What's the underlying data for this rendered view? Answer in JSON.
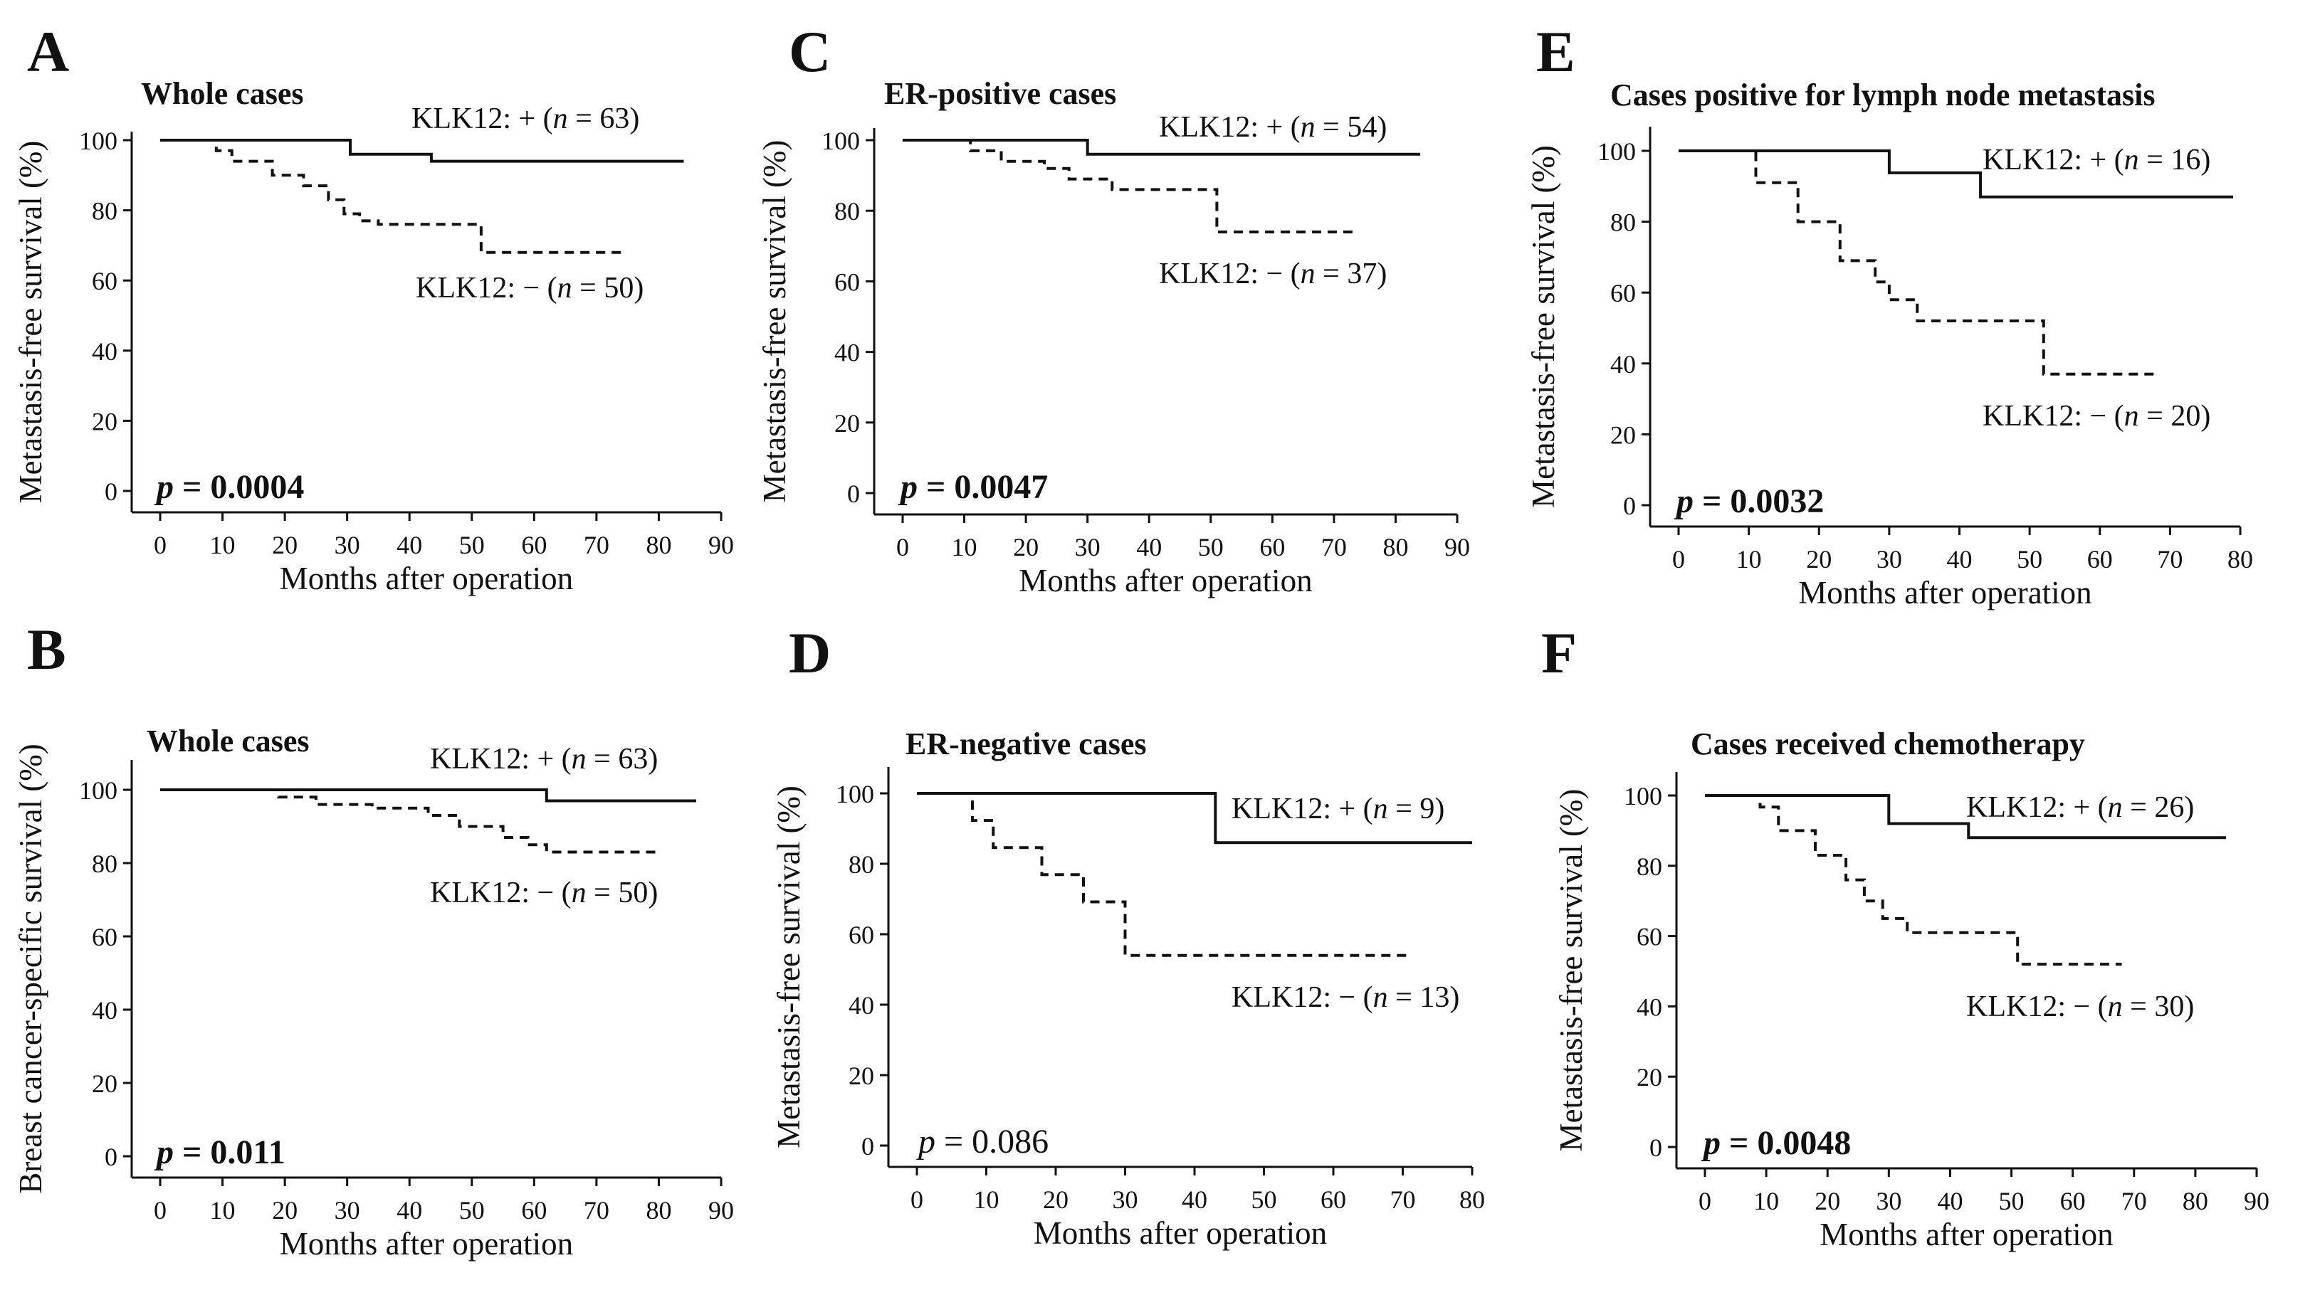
{
  "figure": {
    "panels": [
      "A",
      "B",
      "C",
      "D",
      "E",
      "F"
    ]
  },
  "chart_data": [
    {
      "panel": "A",
      "type": "line",
      "title": "Whole cases",
      "xlabel": "Months after operation",
      "ylabel": "Metastasis-free survival (%)",
      "xlim": [
        0,
        90
      ],
      "ylim": [
        0,
        100
      ],
      "xticks": [
        0,
        10,
        20,
        30,
        40,
        50,
        60,
        70,
        80,
        90
      ],
      "yticks": [
        0,
        20,
        40,
        60,
        80,
        100
      ],
      "p_prefix": "p",
      "p_value": "= 0.0004",
      "p_bold": true,
      "series": [
        {
          "name": "KLK12: + (n = 63)",
          "label_prefix": "KLK12: + (",
          "n_symbol": "n",
          "label_suffix": " = 63)",
          "style": "solid",
          "x": [
            0,
            30.5,
            30.5,
            43.5,
            43.5,
            84
          ],
          "y": [
            100,
            100,
            96,
            96,
            94,
            94
          ]
        },
        {
          "name": "KLK12: − (n = 50)",
          "label_prefix": "KLK12: − (",
          "n_symbol": "n",
          "label_suffix": " = 50)",
          "style": "dashed",
          "x": [
            0,
            9,
            9,
            11.5,
            11.5,
            18,
            18,
            23,
            23,
            27,
            27,
            29.5,
            29.5,
            32,
            32,
            35,
            35,
            51.5,
            51.5,
            74
          ],
          "y": [
            100,
            100,
            97,
            97,
            94,
            94,
            90,
            90,
            87,
            87,
            83,
            83,
            79,
            79,
            77,
            77,
            76,
            76,
            68,
            68
          ]
        }
      ]
    },
    {
      "panel": "B",
      "type": "line",
      "title": "Whole cases",
      "xlabel": "Months after operation",
      "ylabel": "Breast cancer-specific survival (%)",
      "xlim": [
        0,
        90
      ],
      "ylim": [
        0,
        100
      ],
      "xticks": [
        0,
        10,
        20,
        30,
        40,
        50,
        60,
        70,
        80,
        90
      ],
      "yticks": [
        0,
        20,
        40,
        60,
        80,
        100
      ],
      "p_prefix": "p",
      "p_value": "= 0.011",
      "p_bold": true,
      "series": [
        {
          "name": "KLK12: + (n = 63)",
          "label_prefix": "KLK12: + (",
          "n_symbol": "n",
          "label_suffix": " = 63)",
          "style": "solid",
          "x": [
            0,
            62,
            62,
            86
          ],
          "y": [
            100,
            100,
            97,
            97
          ]
        },
        {
          "name": "KLK12: − (n = 50)",
          "label_prefix": "KLK12: − (",
          "n_symbol": "n",
          "label_suffix": " = 50)",
          "style": "dashed",
          "x": [
            0,
            19,
            19,
            25,
            25,
            34,
            34,
            43,
            43,
            48,
            48,
            55,
            55,
            59,
            59,
            62,
            62,
            80
          ],
          "y": [
            100,
            100,
            98,
            98,
            96,
            96,
            95,
            95,
            93,
            93,
            90,
            90,
            87,
            87,
            85,
            85,
            83,
            83
          ]
        }
      ]
    },
    {
      "panel": "C",
      "type": "line",
      "title": "ER-positive cases",
      "xlabel": "Months after operation",
      "ylabel": "Metastasis-free survival (%)",
      "xlim": [
        0,
        90
      ],
      "ylim": [
        0,
        100
      ],
      "xticks": [
        0,
        10,
        20,
        30,
        40,
        50,
        60,
        70,
        80,
        90
      ],
      "yticks": [
        0,
        20,
        40,
        60,
        80,
        100
      ],
      "p_prefix": "p",
      "p_value": "= 0.0047",
      "p_bold": true,
      "series": [
        {
          "name": "KLK12: + (n = 54)",
          "label_prefix": "KLK12: + (",
          "n_symbol": "n",
          "label_suffix": " = 54)",
          "style": "solid",
          "x": [
            0,
            30,
            30,
            84
          ],
          "y": [
            100,
            100,
            96,
            96
          ]
        },
        {
          "name": "KLK12: − (n = 37)",
          "label_prefix": "KLK12: − (",
          "n_symbol": "n",
          "label_suffix": " = 37)",
          "style": "dashed",
          "x": [
            0,
            11,
            11,
            16,
            16,
            23,
            23,
            27,
            27,
            34,
            34,
            51,
            51,
            73
          ],
          "y": [
            100,
            100,
            97,
            97,
            94,
            94,
            92,
            92,
            89,
            89,
            86,
            86,
            74,
            74
          ]
        }
      ]
    },
    {
      "panel": "D",
      "type": "line",
      "title": "ER-negative cases",
      "xlabel": "Months after operation",
      "ylabel": "Metastasis-free survival (%)",
      "xlim": [
        0,
        80
      ],
      "ylim": [
        0,
        100
      ],
      "xticks": [
        0,
        10,
        20,
        30,
        40,
        50,
        60,
        70,
        80
      ],
      "yticks": [
        0,
        20,
        40,
        60,
        80,
        100
      ],
      "p_prefix": "p",
      "p_value": "= 0.086",
      "p_bold": false,
      "series": [
        {
          "name": "KLK12: + (n = 9)",
          "label_prefix": "KLK12: + (",
          "n_symbol": "n",
          "label_suffix": " = 9)",
          "style": "solid",
          "x": [
            0,
            43,
            43,
            80
          ],
          "y": [
            100,
            100,
            86,
            86
          ]
        },
        {
          "name": "KLK12: − (n = 13)",
          "label_prefix": "KLK12: − (",
          "n_symbol": "n",
          "label_suffix": " = 13)",
          "style": "dashed",
          "x": [
            0,
            8,
            8,
            11,
            11,
            18,
            18,
            24,
            24,
            30,
            30,
            71
          ],
          "y": [
            100,
            100,
            92.3,
            92.3,
            84.6,
            84.6,
            76.9,
            76.9,
            69.2,
            69.2,
            54,
            54
          ]
        }
      ]
    },
    {
      "panel": "E",
      "type": "line",
      "title": "Cases positive for lymph node metastasis",
      "xlabel": "Months after operation",
      "ylabel": "Metastasis-free survival (%)",
      "xlim": [
        0,
        80
      ],
      "ylim": [
        0,
        100
      ],
      "xticks": [
        0,
        10,
        20,
        30,
        40,
        50,
        60,
        70,
        80
      ],
      "yticks": [
        0,
        20,
        40,
        60,
        80,
        100
      ],
      "p_prefix": "p",
      "p_value": "= 0.0032",
      "p_bold": true,
      "series": [
        {
          "name": "KLK12: + (n = 16)",
          "label_prefix": "KLK12: + (",
          "n_symbol": "n",
          "label_suffix": " = 16)",
          "style": "solid",
          "x": [
            0,
            30,
            30,
            43,
            43,
            79
          ],
          "y": [
            100,
            100,
            93.8,
            93.8,
            87,
            87
          ]
        },
        {
          "name": "KLK12: − (n = 20)",
          "label_prefix": "KLK12: − (",
          "n_symbol": "n",
          "label_suffix": " = 20)",
          "style": "dashed",
          "x": [
            0,
            11,
            11,
            17,
            17,
            23,
            23,
            28,
            28,
            30,
            30,
            34,
            34,
            52,
            52,
            68
          ],
          "y": [
            100,
            100,
            91,
            91,
            80,
            80,
            69,
            69,
            63,
            63,
            58,
            58,
            52,
            52,
            37,
            37
          ]
        }
      ]
    },
    {
      "panel": "F",
      "type": "line",
      "title": "Cases received chemotherapy",
      "xlabel": "Months after operation",
      "ylabel": "Metastasis-free survival (%)",
      "xlim": [
        0,
        90
      ],
      "ylim": [
        0,
        100
      ],
      "xticks": [
        0,
        10,
        20,
        30,
        40,
        50,
        60,
        70,
        80,
        90
      ],
      "yticks": [
        0,
        20,
        40,
        60,
        80,
        100
      ],
      "p_prefix": "p",
      "p_value": "= 0.0048",
      "p_bold": true,
      "series": [
        {
          "name": "KLK12: + (n = 26)",
          "label_prefix": "KLK12: + (",
          "n_symbol": "n",
          "label_suffix": " = 26)",
          "style": "solid",
          "x": [
            0,
            30,
            30,
            43,
            43,
            85
          ],
          "y": [
            100,
            100,
            92,
            92,
            88,
            88
          ]
        },
        {
          "name": "KLK12: − (n = 30)",
          "label_prefix": "KLK12: − (",
          "n_symbol": "n",
          "label_suffix": " = 30)",
          "style": "dashed",
          "x": [
            0,
            9,
            9,
            12,
            12,
            18,
            18,
            23,
            23,
            26,
            26,
            29,
            29,
            33,
            33,
            51,
            51,
            53,
            53,
            68
          ],
          "y": [
            100,
            100,
            96.7,
            96.7,
            90,
            90,
            83,
            83,
            76,
            76,
            70,
            70,
            65,
            65,
            61,
            61,
            52,
            52,
            52,
            52
          ]
        }
      ]
    }
  ]
}
